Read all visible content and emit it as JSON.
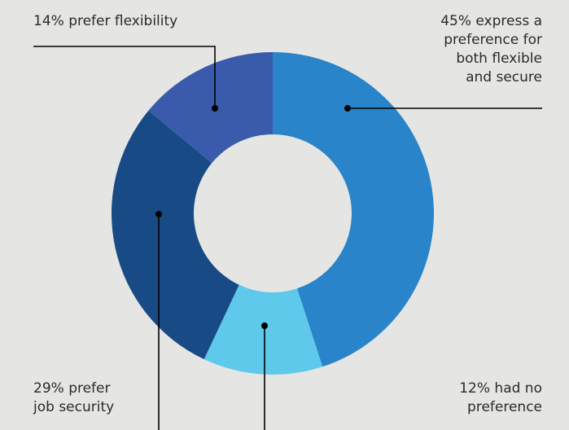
{
  "chart_data": {
    "type": "pie",
    "donut": true,
    "title": "",
    "slices": [
      {
        "label": "45% express a\npreference for\nboth flexible\nand secure",
        "value": 45,
        "color": "#2a84c9"
      },
      {
        "label": "12% had no\npreference",
        "value": 12,
        "color": "#5ec9ea"
      },
      {
        "label": "29% prefer\njob security",
        "value": 29,
        "color": "#184a86"
      },
      {
        "label": "14% prefer flexibility",
        "value": 14,
        "color": "#3a5aab"
      }
    ],
    "legend": "none"
  },
  "colors": {
    "background": "#e5e6e4",
    "leader": "#000000",
    "text": "#2a2a2a"
  }
}
